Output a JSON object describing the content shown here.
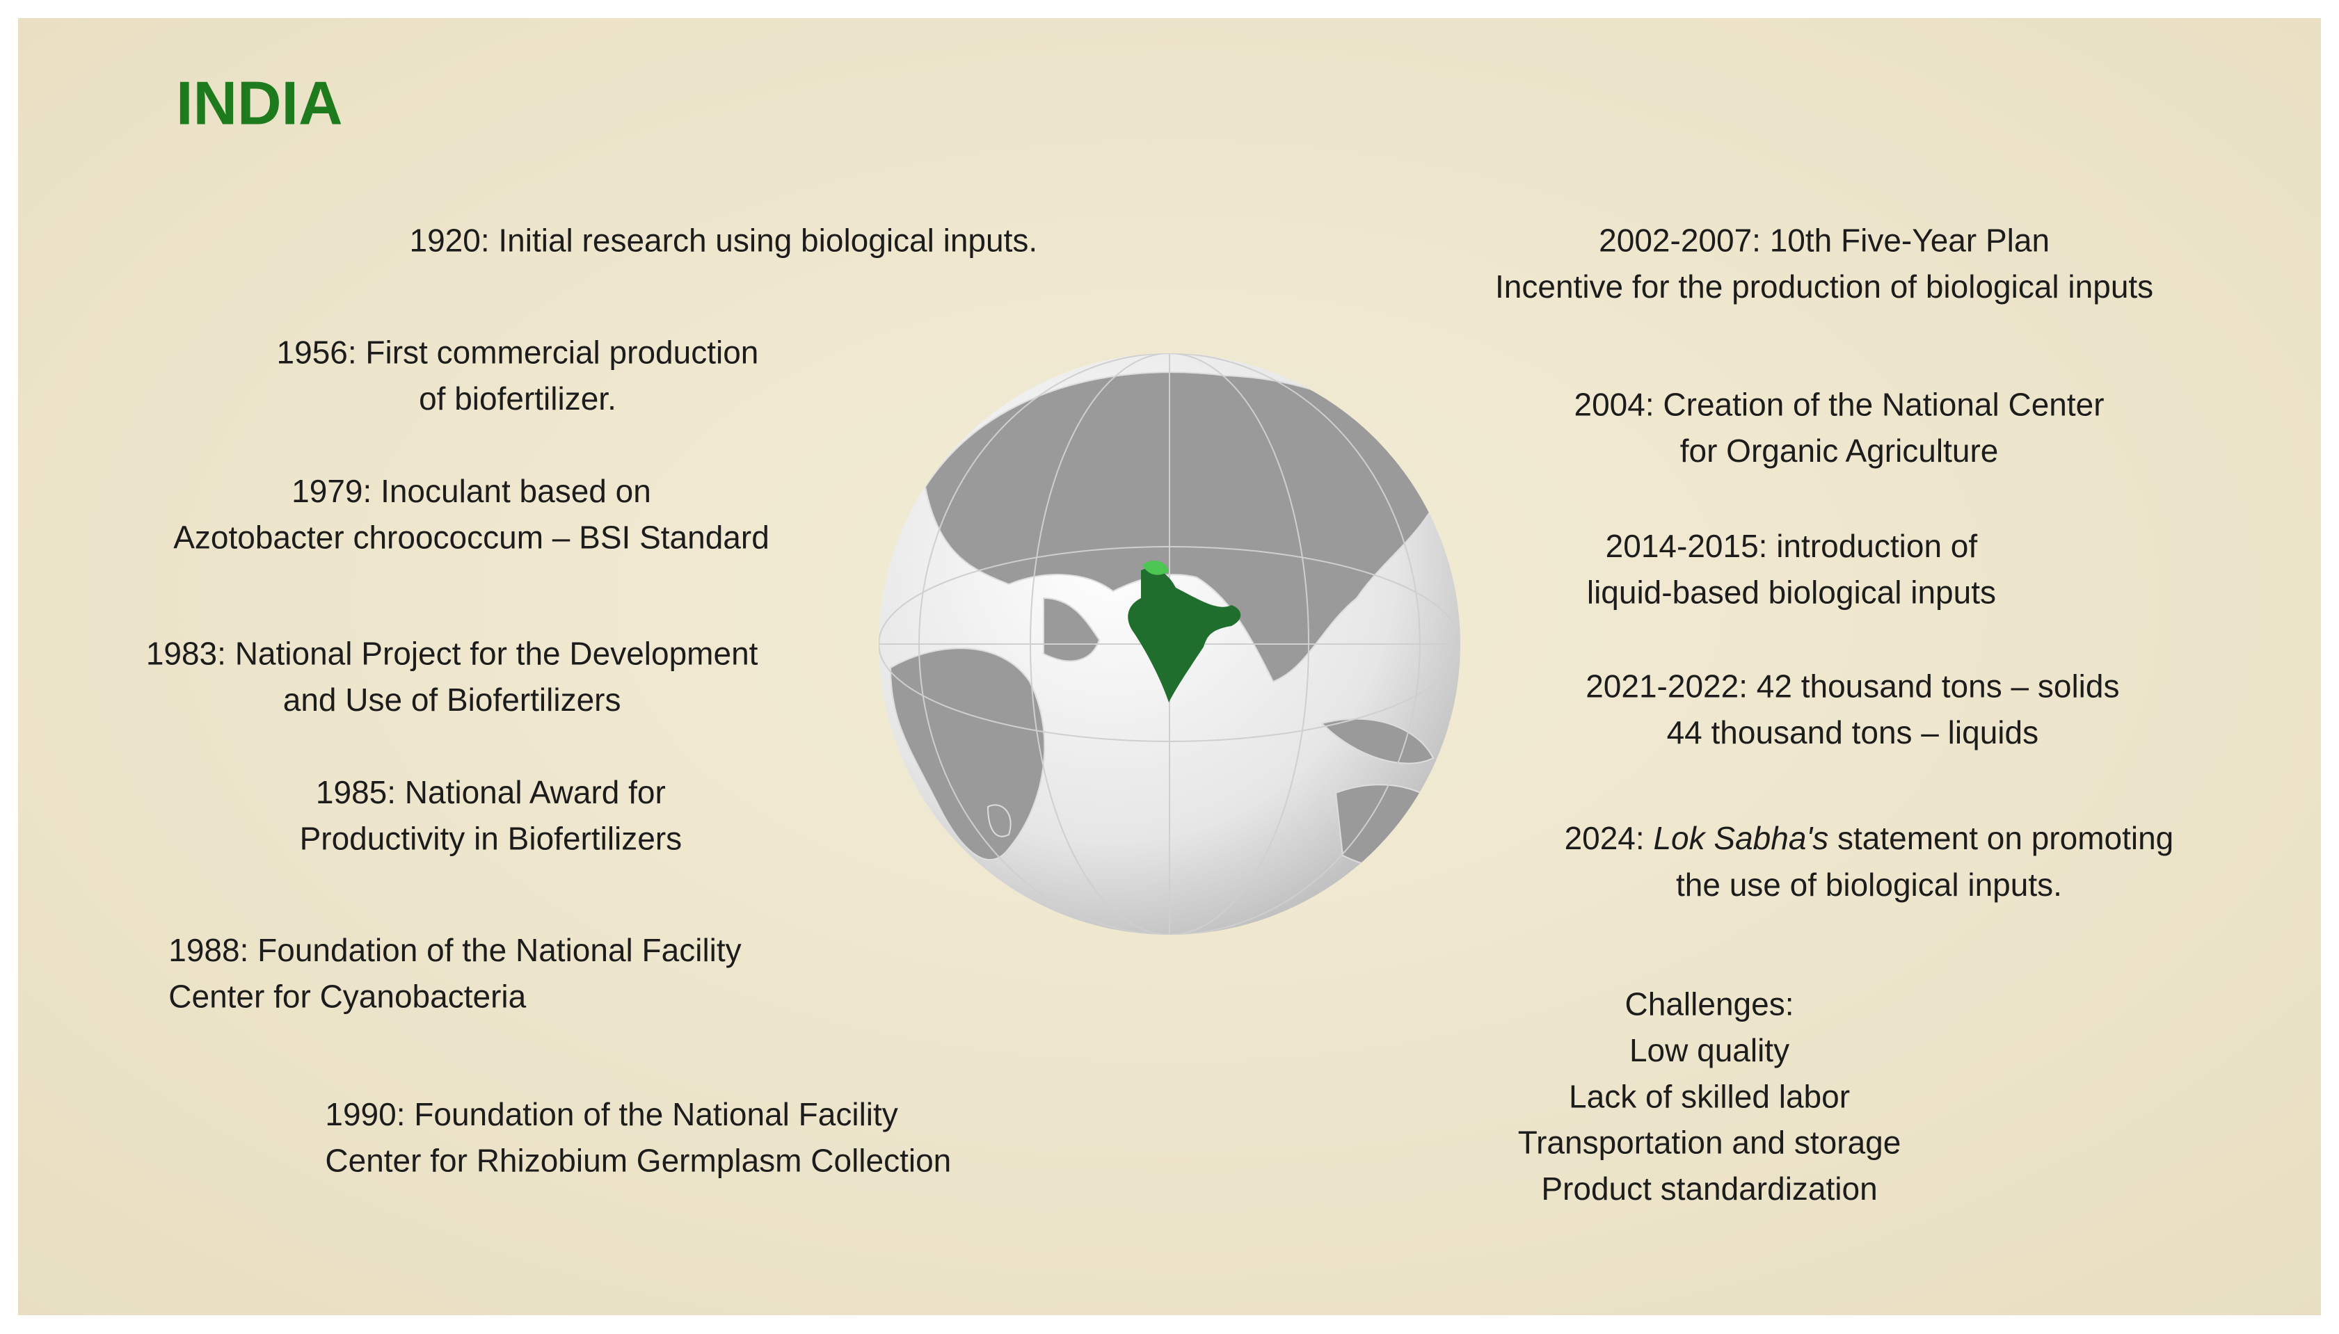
{
  "header": {
    "title": "INDIA"
  },
  "timeline_left": [
    {
      "lines": [
        "1920: Initial research using biological inputs."
      ]
    },
    {
      "lines": [
        "1956: First commercial production",
        "of biofertilizer."
      ]
    },
    {
      "lines": [
        "1979: Inoculant based on",
        "Azotobacter chroococcum – BSI Standard"
      ]
    },
    {
      "lines": [
        "1983: National Project for the Development",
        "and Use of Biofertilizers"
      ]
    },
    {
      "lines": [
        "1985: National Award for",
        "Productivity in Biofertilizers"
      ]
    },
    {
      "lines": [
        "1988: Foundation of the National Facility",
        "Center for Cyanobacteria"
      ]
    },
    {
      "lines": [
        "1990: Foundation of the National Facility",
        "Center for Rhizobium Germplasm Collection"
      ]
    }
  ],
  "timeline_right": [
    {
      "lines": [
        "2002-2007: 10th Five-Year Plan",
        "Incentive for the production of biological inputs"
      ]
    },
    {
      "lines": [
        "2004: Creation of the National Center",
        "for Organic Agriculture"
      ]
    },
    {
      "lines": [
        "2014-2015: introduction of",
        "liquid-based biological inputs"
      ]
    },
    {
      "lines": [
        "2021-2022: 42 thousand tons – solids",
        "44 thousand tons – liquids"
      ]
    },
    {
      "lines": [
        [
          "2024: ",
          "Lok Sabha's",
          " statement on promoting"
        ],
        "the use of biological inputs."
      ]
    }
  ],
  "challenges": {
    "heading": "Challenges:",
    "items": [
      "Low quality",
      "Lack of skilled labor",
      "Transportation and storage",
      "Product standardization"
    ]
  }
}
